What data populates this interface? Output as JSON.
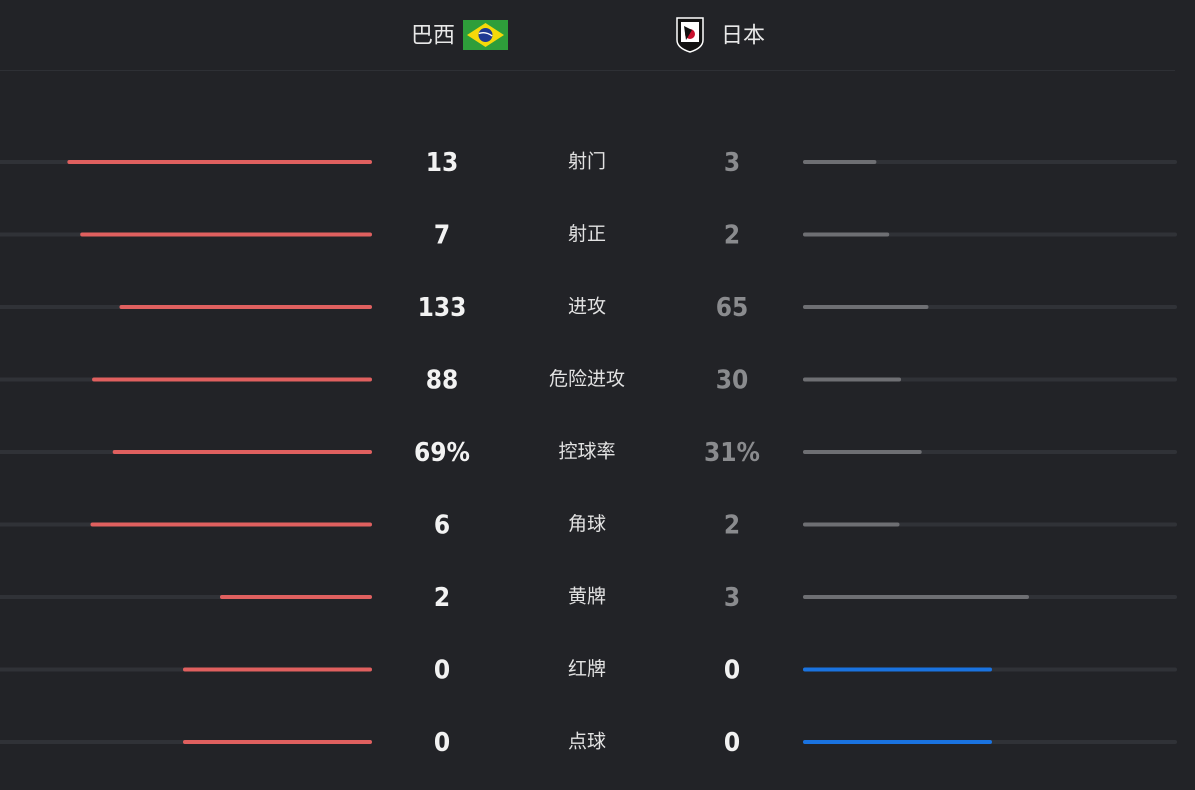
{
  "header": {
    "home": "巴西",
    "away": "日本"
  },
  "stats": [
    {
      "name": "射门",
      "home": 13,
      "away": 3
    },
    {
      "name": "射正",
      "home": 7,
      "away": 2
    },
    {
      "name": "进攻",
      "home": 133,
      "away": 65
    },
    {
      "name": "危险进攻",
      "home": 88,
      "away": 30
    },
    {
      "name": "控球率",
      "home": 69,
      "away": 31,
      "home_label": "69%",
      "away_label": "31%"
    },
    {
      "name": "角球",
      "home": 6,
      "away": 2
    },
    {
      "name": "黄牌",
      "home": 2,
      "away": 3
    },
    {
      "name": "红牌",
      "home": 0,
      "away": 0
    },
    {
      "name": "点球",
      "home": 0,
      "away": 0
    }
  ]
}
